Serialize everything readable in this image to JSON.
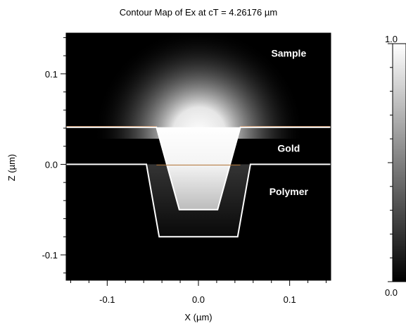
{
  "chart_data": {
    "type": "heatmap",
    "title": "Contour Map of Ex at cT = 4.26176 µm",
    "xlabel": "X (µm)",
    "ylabel": "Z (µm)",
    "xlim": [
      -0.145,
      0.145
    ],
    "ylim": [
      -0.128,
      0.145
    ],
    "x_ticks": [
      {
        "value": -0.1,
        "label": "-0.1"
      },
      {
        "value": 0.0,
        "label": "0.0"
      },
      {
        "value": 0.1,
        "label": "0.1"
      }
    ],
    "y_ticks": [
      {
        "value": 0.1,
        "label": "0.1"
      },
      {
        "value": 0.0,
        "label": "0.0"
      },
      {
        "value": -0.1,
        "label": "-0.1"
      }
    ],
    "colorbar": {
      "min": 0.0,
      "max": 1.0,
      "labels": [
        {
          "value": 1.0,
          "label": "1.0"
        },
        {
          "value": 0.0,
          "label": "0.0"
        }
      ]
    },
    "regions": [
      {
        "name": "Sample",
        "label_pos": [
          0.099,
          0.119
        ]
      },
      {
        "name": "Gold",
        "label_pos": [
          0.099,
          0.014
        ]
      },
      {
        "name": "Polymer",
        "label_pos": [
          0.099,
          -0.034
        ]
      }
    ],
    "boundaries": [
      {
        "name": "gold-top",
        "points": [
          [
            -0.145,
            0.041
          ],
          [
            -0.046,
            0.041
          ],
          [
            -0.021,
            -0.05
          ],
          [
            0.021,
            -0.05
          ],
          [
            0.046,
            0.041
          ],
          [
            0.145,
            0.041
          ]
        ]
      },
      {
        "name": "gold-bottom",
        "points": [
          [
            -0.145,
            0.0
          ],
          [
            -0.057,
            0.0
          ],
          [
            -0.043,
            -0.08
          ],
          [
            0.043,
            -0.08
          ],
          [
            0.057,
            0.0
          ],
          [
            0.145,
            0.0
          ]
        ]
      }
    ],
    "grid": false
  }
}
